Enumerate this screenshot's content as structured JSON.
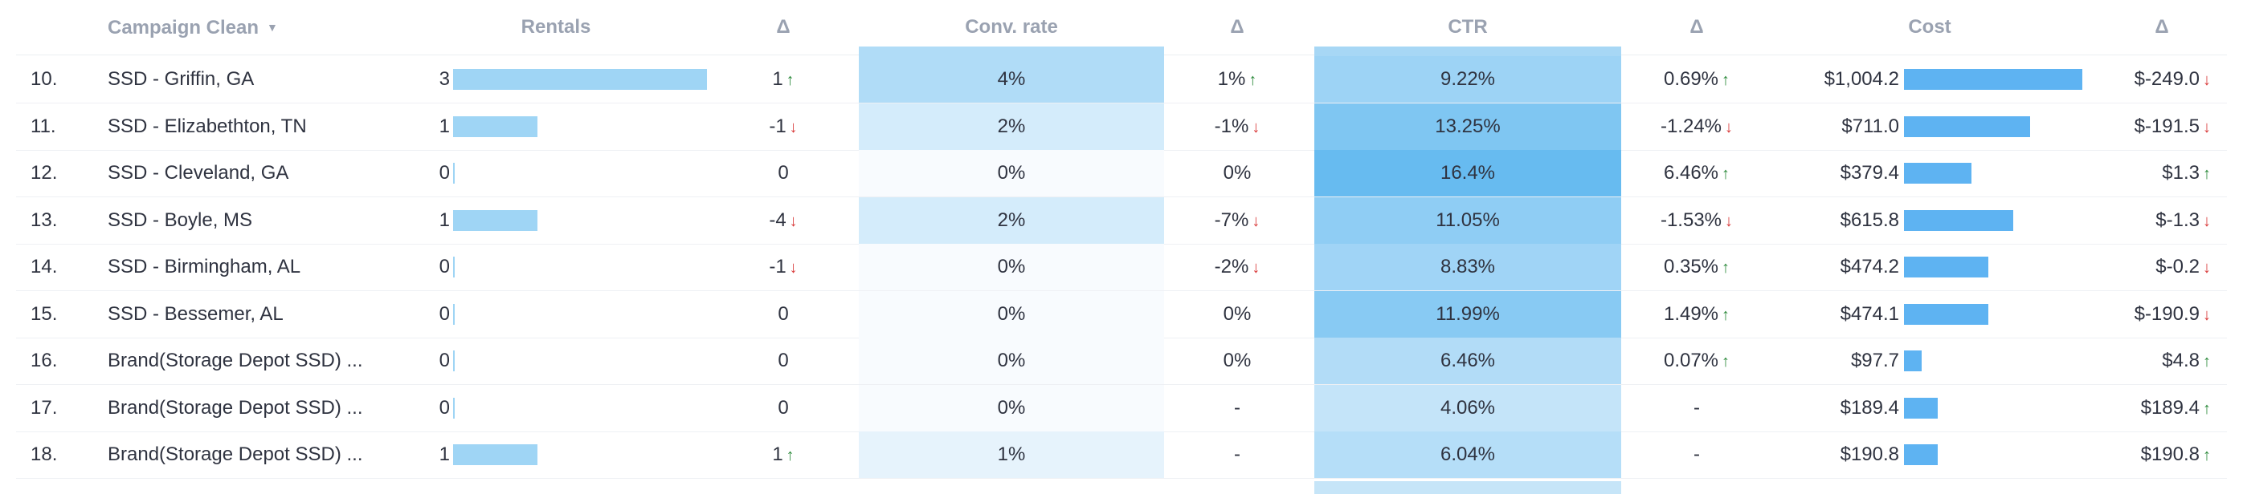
{
  "header": {
    "campaign": "Campaign Clean",
    "rentals": "Rentals",
    "delta1": "Δ",
    "conv": "Conv. rate",
    "delta2": "Δ",
    "ctr": "CTR",
    "delta3": "Δ",
    "cost": "Cost",
    "delta4": "Δ",
    "sort_icon": "caret-down-icon"
  },
  "colors": {
    "rental_bar": "#9fd5f5",
    "cost_bar": "#5eb3f2",
    "up": "#2e8b3d",
    "down": "#d93b3b"
  },
  "rows": [
    {
      "num": "10.",
      "name": "SSD - Griffin, GA",
      "rentals": "3",
      "rentals_n": 3,
      "d_rentals": "1",
      "d_rentals_dir": "up",
      "conv": "4%",
      "conv_n": 4,
      "d_conv": "1%",
      "d_conv_dir": "up",
      "ctr": "9.22%",
      "ctr_n": 9.22,
      "d_ctr": "0.69%",
      "d_ctr_dir": "up",
      "cost": "$1,004.2",
      "cost_n": 1004.2,
      "d_cost": "$-249.0",
      "d_cost_dir": "down"
    },
    {
      "num": "11.",
      "name": "SSD - Elizabethton, TN",
      "rentals": "1",
      "rentals_n": 1,
      "d_rentals": "-1",
      "d_rentals_dir": "down",
      "conv": "2%",
      "conv_n": 2,
      "d_conv": "-1%",
      "d_conv_dir": "down",
      "ctr": "13.25%",
      "ctr_n": 13.25,
      "d_ctr": "-1.24%",
      "d_ctr_dir": "down",
      "cost": "$711.0",
      "cost_n": 711.0,
      "d_cost": "$-191.5",
      "d_cost_dir": "down"
    },
    {
      "num": "12.",
      "name": "SSD - Cleveland, GA",
      "rentals": "0",
      "rentals_n": 0,
      "d_rentals": "0",
      "d_rentals_dir": "",
      "conv": "0%",
      "conv_n": 0,
      "d_conv": "0%",
      "d_conv_dir": "",
      "ctr": "16.4%",
      "ctr_n": 16.4,
      "d_ctr": "6.46%",
      "d_ctr_dir": "up",
      "cost": "$379.4",
      "cost_n": 379.4,
      "d_cost": "$1.3",
      "d_cost_dir": "up"
    },
    {
      "num": "13.",
      "name": "SSD - Boyle, MS",
      "rentals": "1",
      "rentals_n": 1,
      "d_rentals": "-4",
      "d_rentals_dir": "down",
      "conv": "2%",
      "conv_n": 2,
      "d_conv": "-7%",
      "d_conv_dir": "down",
      "ctr": "11.05%",
      "ctr_n": 11.05,
      "d_ctr": "-1.53%",
      "d_ctr_dir": "down",
      "cost": "$615.8",
      "cost_n": 615.8,
      "d_cost": "$-1.3",
      "d_cost_dir": "down"
    },
    {
      "num": "14.",
      "name": "SSD - Birmingham, AL",
      "rentals": "0",
      "rentals_n": 0,
      "d_rentals": "-1",
      "d_rentals_dir": "down",
      "conv": "0%",
      "conv_n": 0,
      "d_conv": "-2%",
      "d_conv_dir": "down",
      "ctr": "8.83%",
      "ctr_n": 8.83,
      "d_ctr": "0.35%",
      "d_ctr_dir": "up",
      "cost": "$474.2",
      "cost_n": 474.2,
      "d_cost": "$-0.2",
      "d_cost_dir": "down"
    },
    {
      "num": "15.",
      "name": "SSD - Bessemer, AL",
      "rentals": "0",
      "rentals_n": 0,
      "d_rentals": "0",
      "d_rentals_dir": "",
      "conv": "0%",
      "conv_n": 0,
      "d_conv": "0%",
      "d_conv_dir": "",
      "ctr": "11.99%",
      "ctr_n": 11.99,
      "d_ctr": "1.49%",
      "d_ctr_dir": "up",
      "cost": "$474.1",
      "cost_n": 474.1,
      "d_cost": "$-190.9",
      "d_cost_dir": "down"
    },
    {
      "num": "16.",
      "name": "Brand(Storage Depot SSD) ...",
      "rentals": "0",
      "rentals_n": 0,
      "d_rentals": "0",
      "d_rentals_dir": "",
      "conv": "0%",
      "conv_n": 0,
      "d_conv": "0%",
      "d_conv_dir": "",
      "ctr": "6.46%",
      "ctr_n": 6.46,
      "d_ctr": "0.07%",
      "d_ctr_dir": "up",
      "cost": "$97.7",
      "cost_n": 97.7,
      "d_cost": "$4.8",
      "d_cost_dir": "up"
    },
    {
      "num": "17.",
      "name": "Brand(Storage Depot SSD) ...",
      "rentals": "0",
      "rentals_n": 0,
      "d_rentals": "0",
      "d_rentals_dir": "",
      "conv": "0%",
      "conv_n": 0,
      "d_conv": "-",
      "d_conv_dir": "",
      "ctr": "4.06%",
      "ctr_n": 4.06,
      "d_ctr": "-",
      "d_ctr_dir": "",
      "cost": "$189.4",
      "cost_n": 189.4,
      "d_cost": "$189.4",
      "d_cost_dir": "up"
    },
    {
      "num": "18.",
      "name": "Brand(Storage Depot SSD) ...",
      "rentals": "1",
      "rentals_n": 1,
      "d_rentals": "1",
      "d_rentals_dir": "up",
      "conv": "1%",
      "conv_n": 1,
      "d_conv": "-",
      "d_conv_dir": "",
      "ctr": "6.04%",
      "ctr_n": 6.04,
      "d_ctr": "-",
      "d_ctr_dir": "",
      "cost": "$190.8",
      "cost_n": 190.8,
      "d_cost": "$190.8",
      "d_cost_dir": "up"
    }
  ]
}
